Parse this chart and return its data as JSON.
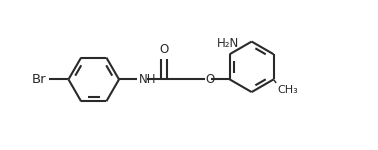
{
  "background_color": "#ffffff",
  "line_color": "#2a2a2a",
  "line_width": 1.5,
  "text_color": "#2a2a2a",
  "font_size": 8.5,
  "figure_width": 3.78,
  "figure_height": 1.5,
  "dpi": 100,
  "br_label": "Br",
  "nh_label": "NH",
  "o_carbonyl_label": "O",
  "o_ether_label": "O",
  "nh2_label": "H₂N",
  "ch3_label": "CH₃"
}
